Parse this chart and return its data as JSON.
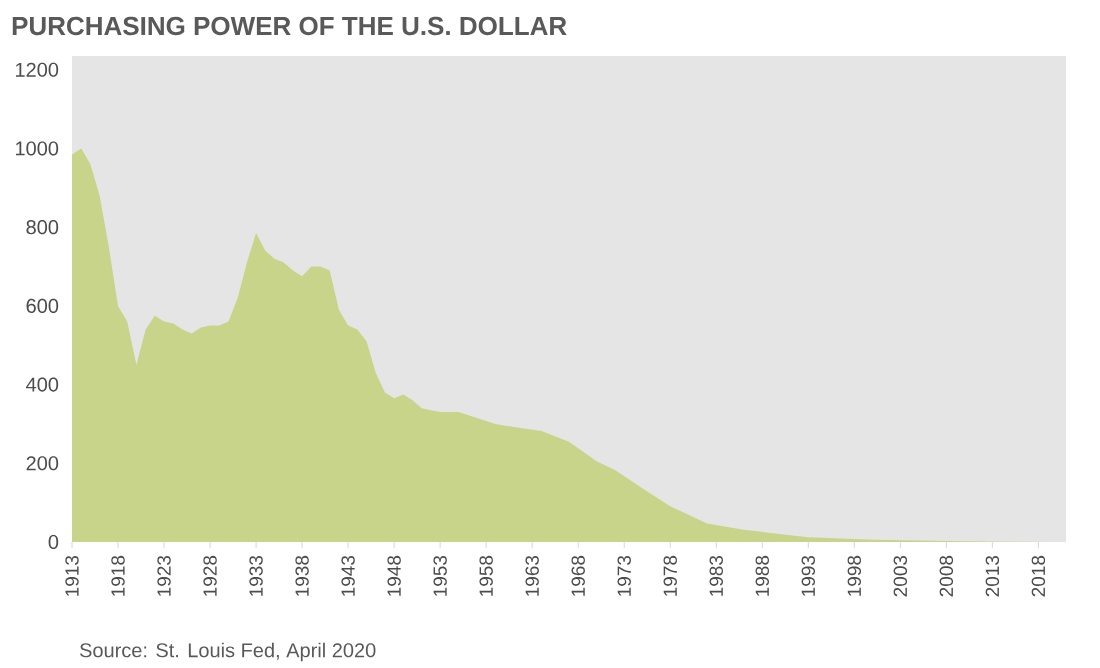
{
  "chart_data": {
    "type": "area",
    "title": "PURCHASING POWER OF THE U.S. DOLLAR",
    "annotations": [
      "Source: St. Louis Fed, April 2020"
    ],
    "x": [
      1913,
      1914,
      1915,
      1916,
      1917,
      1918,
      1919,
      1920,
      1921,
      1922,
      1923,
      1924,
      1925,
      1926,
      1927,
      1928,
      1929,
      1930,
      1931,
      1932,
      1933,
      1934,
      1935,
      1936,
      1937,
      1938,
      1939,
      1940,
      1941,
      1942,
      1943,
      1944,
      1945,
      1946,
      1947,
      1948,
      1949,
      1950,
      1951,
      1952,
      1953,
      1955,
      1957,
      1959,
      1961,
      1964,
      1967,
      1970,
      1972,
      1975,
      1978,
      1982,
      1986,
      1993,
      2000,
      2010,
      2020
    ],
    "values": [
      985,
      1000,
      960,
      880,
      750,
      600,
      560,
      450,
      540,
      575,
      560,
      555,
      540,
      530,
      545,
      550,
      550,
      560,
      620,
      710,
      785,
      740,
      720,
      710,
      690,
      675,
      700,
      700,
      690,
      590,
      550,
      540,
      510,
      430,
      380,
      365,
      375,
      360,
      340,
      335,
      330,
      330,
      315,
      300,
      292,
      282,
      255,
      205,
      183,
      136,
      91,
      47,
      31,
      12,
      6,
      2,
      0
    ],
    "color": "#c8d48a",
    "xlim": [
      1913,
      2021
    ],
    "ylim": [
      0,
      1235
    ],
    "yticks": [
      0,
      200,
      400,
      600,
      800,
      1000,
      1200
    ],
    "xticks": [
      1913,
      1918,
      1923,
      1928,
      1933,
      1938,
      1943,
      1948,
      1953,
      1958,
      1963,
      1968,
      1973,
      1978,
      1983,
      1988,
      1993,
      1998,
      2003,
      2008,
      2013,
      2018
    ]
  }
}
